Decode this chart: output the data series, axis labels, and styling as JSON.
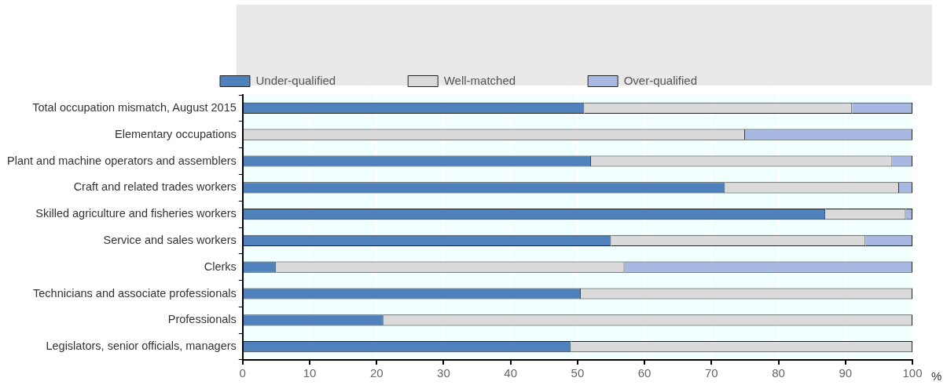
{
  "chart_data": {
    "type": "bar",
    "orientation": "horizontal",
    "stacked": true,
    "xlabel": "%",
    "categories": [
      "Total occupation mismatch, August 2015",
      "Elementary occupations",
      "Plant and machine operators and assemblers",
      "Craft and related trades workers",
      "Skilled agriculture and fisheries workers",
      "Service and sales workers",
      "Clerks",
      "Technicians and associate professionals",
      "Professionals",
      "Legislators, senior officials, managers"
    ],
    "series": [
      {
        "name": "Under-qualified",
        "color": "#4f81bd",
        "values": [
          51,
          0,
          52,
          72,
          87,
          55,
          5,
          50.5,
          21,
          49
        ]
      },
      {
        "name": "Well-matched",
        "color": "#dadada",
        "values": [
          40,
          75,
          45,
          26,
          12,
          38,
          52,
          49.5,
          79,
          51
        ]
      },
      {
        "name": "Over-qualified",
        "color": "#a7b9e3",
        "values": [
          9,
          25,
          3,
          2,
          1,
          7,
          43,
          0,
          0,
          0
        ]
      }
    ],
    "xlim": [
      0,
      100
    ],
    "xticks": [
      0,
      10,
      20,
      30,
      40,
      50,
      60,
      70,
      80,
      90,
      100
    ],
    "grid": "x",
    "legend": "top"
  }
}
